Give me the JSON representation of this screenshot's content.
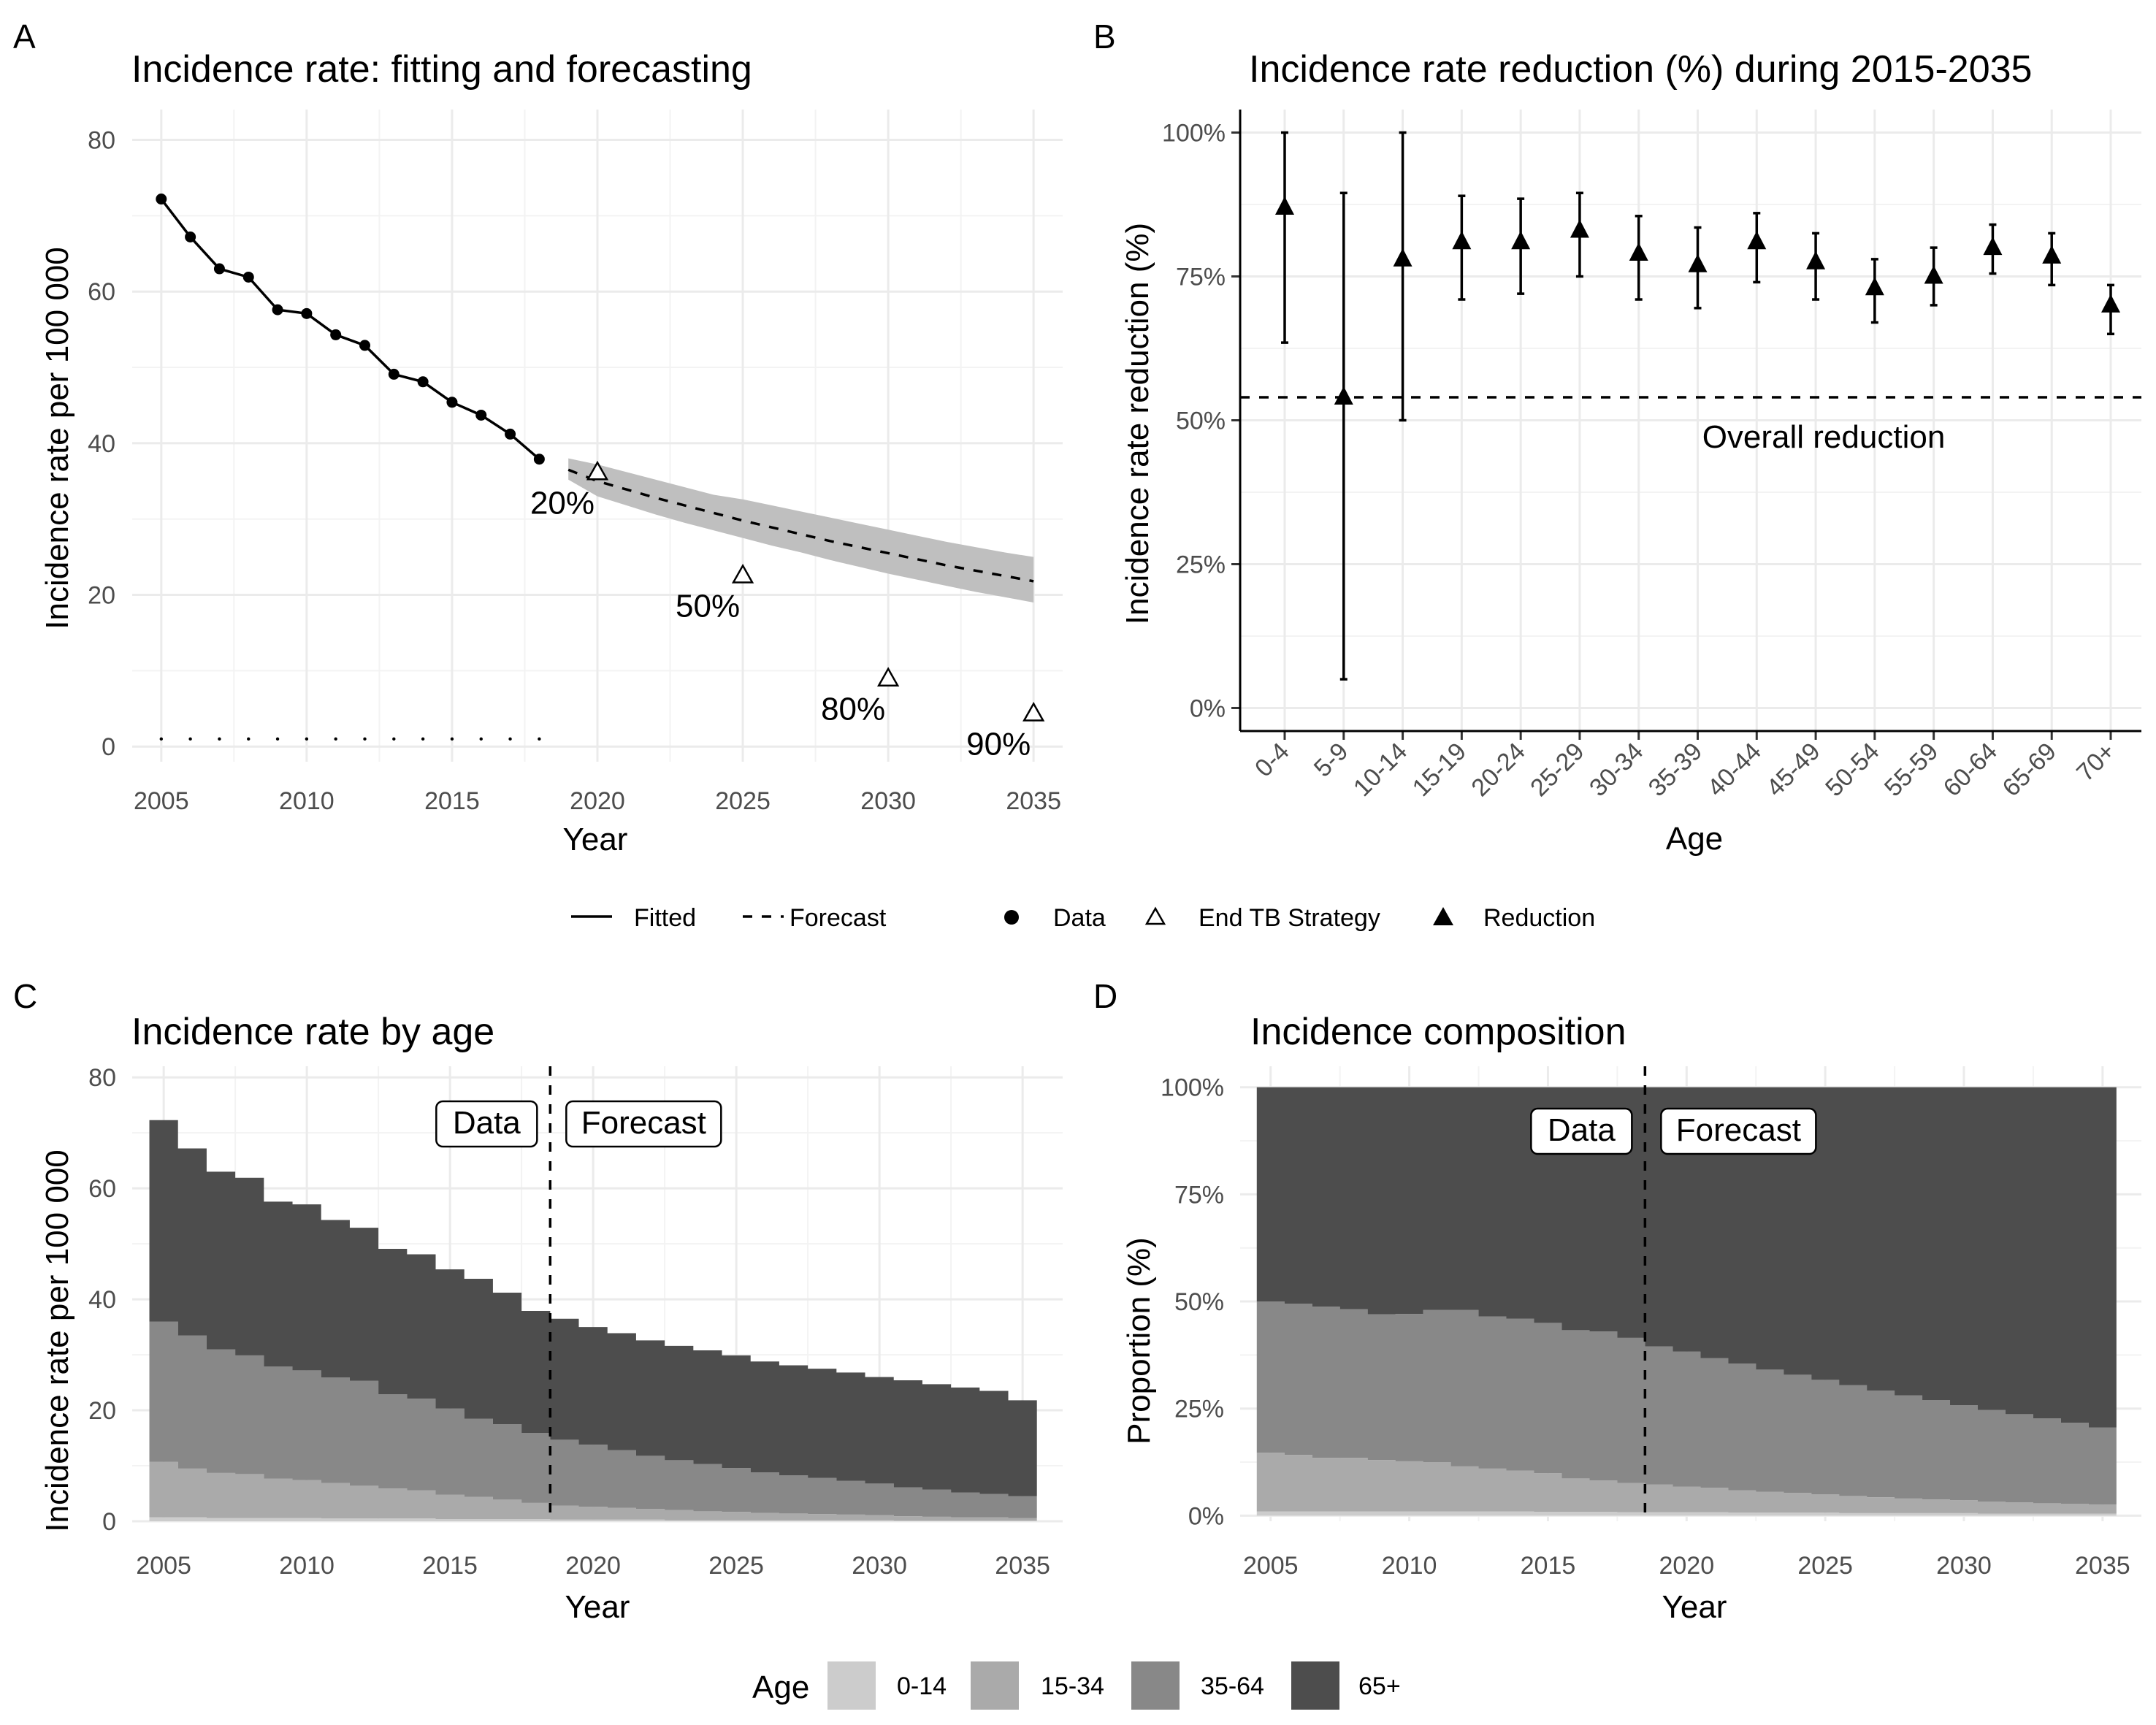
{
  "chart_data": [
    {
      "panel": "A",
      "type": "line",
      "title": "Incidence rate: fitting and forecasting",
      "xlabel": "Year",
      "ylabel": "Incidence rate per 100 000",
      "xlim": [
        2004,
        2036
      ],
      "ylim": [
        -2,
        84
      ],
      "xticks": [
        2005,
        2010,
        2015,
        2020,
        2025,
        2030,
        2035
      ],
      "yticks": [
        0,
        20,
        40,
        60,
        80
      ],
      "grid": true,
      "data": {
        "x": [
          2005,
          2006,
          2007,
          2008,
          2009,
          2010,
          2011,
          2012,
          2013,
          2014,
          2015,
          2016,
          2017,
          2018
        ],
        "y": [
          72.2,
          67.2,
          63.0,
          61.9,
          57.6,
          57.1,
          54.3,
          52.9,
          49.1,
          48.1,
          45.4,
          43.7,
          41.2,
          37.9
        ]
      },
      "fitted_zero": {
        "x": [
          2005,
          2006,
          2007,
          2008,
          2009,
          2010,
          2011,
          2012,
          2013,
          2014,
          2015,
          2016,
          2017,
          2018
        ],
        "y": [
          1,
          1,
          1,
          1,
          1,
          1,
          1,
          1,
          1,
          1,
          1,
          1,
          1,
          1
        ]
      },
      "forecast": {
        "x": [
          2019,
          2020,
          2021,
          2022,
          2023,
          2024,
          2025,
          2026,
          2027,
          2028,
          2029,
          2030,
          2031,
          2032,
          2033,
          2034,
          2035
        ],
        "y": [
          36.5,
          35.0,
          33.9,
          32.8,
          31.8,
          30.8,
          29.8,
          28.9,
          28.0,
          27.1,
          26.3,
          25.5,
          24.7,
          23.9,
          23.2,
          22.5,
          21.8
        ],
        "lower": [
          35.2,
          33.0,
          31.8,
          30.6,
          29.5,
          28.5,
          27.5,
          26.5,
          25.6,
          24.6,
          23.7,
          22.8,
          22.0,
          21.2,
          20.4,
          19.7,
          19.0
        ],
        "upper": [
          38.0,
          37.2,
          36.2,
          35.2,
          34.2,
          33.2,
          32.6,
          31.8,
          31.0,
          30.2,
          29.4,
          28.6,
          27.8,
          27.0,
          26.3,
          25.6,
          25.0
        ]
      },
      "end_tb": {
        "x": [
          2020,
          2025,
          2030,
          2035
        ],
        "y": [
          36.3,
          22.7,
          9.1,
          4.5
        ],
        "labels": [
          "20%",
          "50%",
          "80%",
          "90%"
        ]
      }
    },
    {
      "panel": "B",
      "type": "scatter",
      "title": "Incidence rate reduction (%) during 2015-2035",
      "xlabel": "Age",
      "ylabel": "Incidence rate reduction (%)",
      "categories": [
        "0-4",
        "5-9",
        "10-14",
        "15-19",
        "20-24",
        "25-29",
        "30-34",
        "35-39",
        "40-44",
        "45-49",
        "50-54",
        "55-59",
        "60-64",
        "65-69",
        "70+"
      ],
      "values": [
        87,
        54,
        78,
        81,
        81,
        83,
        79,
        77,
        81,
        77.5,
        73,
        75,
        80,
        78.5,
        70
      ],
      "lower": [
        63.5,
        5,
        50,
        71,
        72,
        75,
        71,
        69.5,
        74,
        71,
        67,
        70,
        75.5,
        73.5,
        65
      ],
      "upper": [
        100,
        89.5,
        100,
        89,
        88.5,
        89.5,
        85.5,
        83.5,
        86,
        82.5,
        78,
        80,
        84,
        82.5,
        73.5
      ],
      "overall_reduction": 54,
      "overall_label": "Overall reduction",
      "ylim": [
        -4,
        104
      ],
      "yticks": [
        0,
        25,
        50,
        75,
        100
      ],
      "ytick_labels": [
        "0%",
        "25%",
        "50%",
        "75%",
        "100%"
      ],
      "grid": true
    },
    {
      "panel": "C",
      "type": "area",
      "stacked": true,
      "title": "Incidence rate by age",
      "xlabel": "Year",
      "ylabel": "Incidence rate per 100 000",
      "x": [
        2005,
        2006,
        2007,
        2008,
        2009,
        2010,
        2011,
        2012,
        2013,
        2014,
        2015,
        2016,
        2017,
        2018,
        2019,
        2020,
        2021,
        2022,
        2023,
        2024,
        2025,
        2026,
        2027,
        2028,
        2029,
        2030,
        2031,
        2032,
        2033,
        2034,
        2035
      ],
      "series": [
        {
          "name": "0-14",
          "values": [
            0.7,
            0.7,
            0.6,
            0.6,
            0.6,
            0.6,
            0.5,
            0.5,
            0.5,
            0.5,
            0.4,
            0.4,
            0.4,
            0.4,
            0.3,
            0.3,
            0.3,
            0.3,
            0.2,
            0.2,
            0.2,
            0.2,
            0.2,
            0.2,
            0.2,
            0.2,
            0.1,
            0.1,
            0.1,
            0.1,
            0.1
          ]
        },
        {
          "name": "15-34",
          "values": [
            10.0,
            8.8,
            8.1,
            7.9,
            7.1,
            6.8,
            6.4,
            5.9,
            5.4,
            5.1,
            4.4,
            4.0,
            3.5,
            2.9,
            2.5,
            2.3,
            2.1,
            1.9,
            1.8,
            1.6,
            1.5,
            1.3,
            1.2,
            1.1,
            1.0,
            0.9,
            0.8,
            0.7,
            0.6,
            0.6,
            0.5
          ]
        },
        {
          "name": "35-64",
          "values": [
            25.3,
            24.0,
            22.3,
            21.4,
            20.2,
            19.8,
            19.0,
            18.9,
            17.0,
            16.5,
            15.5,
            14.1,
            13.6,
            12.6,
            11.9,
            11.2,
            10.4,
            9.6,
            9.0,
            8.5,
            7.9,
            7.3,
            6.9,
            6.5,
            6.1,
            5.7,
            5.2,
            4.9,
            4.5,
            4.2,
            3.9
          ]
        },
        {
          "name": "65+",
          "values": [
            36.3,
            33.7,
            32.0,
            32.0,
            29.7,
            29.9,
            28.4,
            27.6,
            26.2,
            26.0,
            25.1,
            25.2,
            23.7,
            22.0,
            21.8,
            21.2,
            21.1,
            20.8,
            20.6,
            20.5,
            20.3,
            20.0,
            19.8,
            19.7,
            19.5,
            19.2,
            19.3,
            19.0,
            18.9,
            18.6,
            17.3
          ]
        }
      ],
      "xlim": [
        2003.9,
        2036.4
      ],
      "ylim": [
        0,
        82
      ],
      "yticks": [
        0,
        20,
        40,
        60,
        80
      ],
      "xticks": [
        2005,
        2010,
        2015,
        2020,
        2025,
        2030,
        2035
      ],
      "divider_year": 2018.5,
      "divider_labels": [
        "Data",
        "Forecast"
      ],
      "grid": true
    },
    {
      "panel": "D",
      "type": "area",
      "stacked": true,
      "title": "Incidence composition",
      "xlabel": "Year",
      "ylabel": "Proportion (%)",
      "x": [
        2005,
        2006,
        2007,
        2008,
        2009,
        2010,
        2011,
        2012,
        2013,
        2014,
        2015,
        2016,
        2017,
        2018,
        2019,
        2020,
        2021,
        2022,
        2023,
        2024,
        2025,
        2026,
        2027,
        2028,
        2029,
        2030,
        2031,
        2032,
        2033,
        2034,
        2035
      ],
      "series": [
        {
          "name": "0-14",
          "values": [
            1.0,
            1.0,
            1.0,
            1.0,
            1.0,
            1.0,
            1.0,
            1.0,
            1.0,
            1.0,
            0.9,
            0.9,
            0.9,
            0.8,
            0.8,
            0.8,
            0.8,
            0.7,
            0.7,
            0.7,
            0.7,
            0.6,
            0.6,
            0.6,
            0.6,
            0.6,
            0.5,
            0.5,
            0.5,
            0.5,
            0.5
          ]
        },
        {
          "name": "15-34",
          "values": [
            13.7,
            13.2,
            12.5,
            12.5,
            12.0,
            11.7,
            11.5,
            10.5,
            10.0,
            9.5,
            9.0,
            7.8,
            7.3,
            6.8,
            6.5,
            6.0,
            5.7,
            5.2,
            4.9,
            4.6,
            4.3,
            4.0,
            3.7,
            3.4,
            3.2,
            3.0,
            2.8,
            2.6,
            2.4,
            2.3,
            2.1
          ]
        },
        {
          "name": "35-64",
          "values": [
            35.3,
            35.3,
            35.3,
            34.7,
            34.0,
            34.4,
            35.5,
            36.5,
            35.5,
            35.5,
            35.1,
            34.6,
            34.8,
            33.9,
            32.2,
            31.5,
            30.3,
            29.6,
            28.5,
            27.6,
            26.7,
            25.9,
            24.9,
            24.1,
            23.2,
            22.2,
            21.4,
            20.6,
            19.8,
            18.9,
            18.0
          ]
        },
        {
          "name": "65+",
          "values": [
            50.0,
            50.5,
            51.2,
            51.8,
            53.0,
            52.9,
            52.0,
            52.0,
            53.5,
            54.0,
            55.0,
            56.7,
            57.0,
            58.5,
            60.5,
            61.7,
            63.2,
            64.5,
            65.9,
            67.1,
            68.3,
            69.5,
            70.8,
            71.9,
            73.0,
            74.2,
            75.3,
            76.3,
            77.3,
            78.3,
            79.4
          ]
        }
      ],
      "xlim": [
        2003.9,
        2036.4
      ],
      "ylim": [
        -1.3,
        104.9
      ],
      "yticks": [
        0,
        25,
        50,
        75,
        100
      ],
      "ytick_labels": [
        "0%",
        "25%",
        "50%",
        "75%",
        "100%"
      ],
      "xticks": [
        2005,
        2010,
        2015,
        2020,
        2025,
        2030,
        2035
      ],
      "divider_year": 2018.5,
      "divider_labels": [
        "Data",
        "Forecast"
      ],
      "grid": true
    }
  ],
  "panel_letters": {
    "a": "A",
    "b": "B",
    "c": "C",
    "d": "D"
  },
  "legend_top": {
    "fitted": "Fitted",
    "forecast": "Forecast",
    "data": "Data",
    "end_tb": "End TB Strategy",
    "reduction": "Reduction"
  },
  "legend_age": {
    "title": "Age",
    "items": [
      {
        "label": "0-14",
        "color": "#cccccc"
      },
      {
        "label": "15-34",
        "color": "#aaaaaa"
      },
      {
        "label": "35-64",
        "color": "#888888"
      },
      {
        "label": "65+",
        "color": "#4d4d4d"
      }
    ]
  },
  "colors": {
    "grid_major": "#ebebeb",
    "grid_minor": "#f3f3f3",
    "ribbon": "#bfbfbf",
    "tick_text": "#4d4d4d"
  }
}
